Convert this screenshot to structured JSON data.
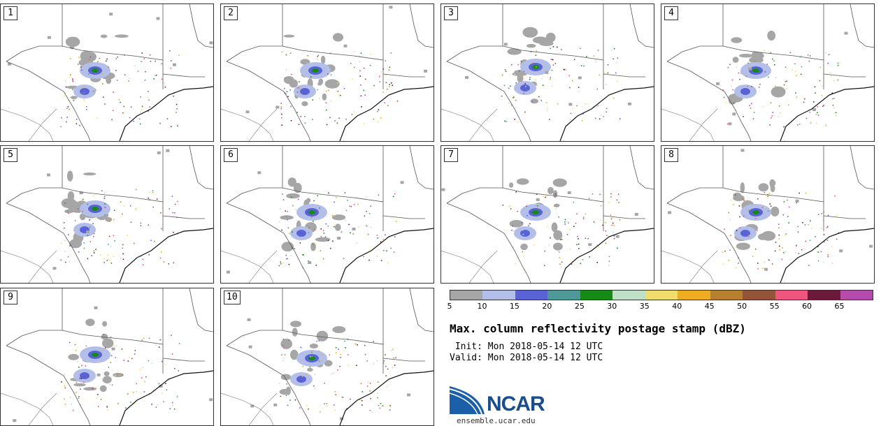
{
  "panels": [
    {
      "label": "1"
    },
    {
      "label": "2"
    },
    {
      "label": "3"
    },
    {
      "label": "4"
    },
    {
      "label": "5"
    },
    {
      "label": "6"
    },
    {
      "label": "7"
    },
    {
      "label": "8"
    },
    {
      "label": "9"
    },
    {
      "label": "10"
    }
  ],
  "colorbar": {
    "colors": [
      "#a6a6a6",
      "#b3bfe8",
      "#5a63d6",
      "#4f9999",
      "#168a16",
      "#bfe0c7",
      "#f0dd6b",
      "#eead21",
      "#b5812f",
      "#92553a",
      "#ef557f",
      "#6b1a3a",
      "#b54caa"
    ],
    "ticks": [
      "5",
      "10",
      "15",
      "20",
      "25",
      "30",
      "35",
      "40",
      "45",
      "50",
      "55",
      "60",
      "65"
    ]
  },
  "title": "Max. column reflectivity postage stamp (dBZ)",
  "init_label": " Init: Mon 2018-05-14 12 UTC",
  "valid_label": "Valid: Mon 2018-05-14 12 UTC",
  "logo": {
    "text": "NCAR",
    "url_text": "ensemble.ucar.edu",
    "color": "#1a5fa8"
  }
}
